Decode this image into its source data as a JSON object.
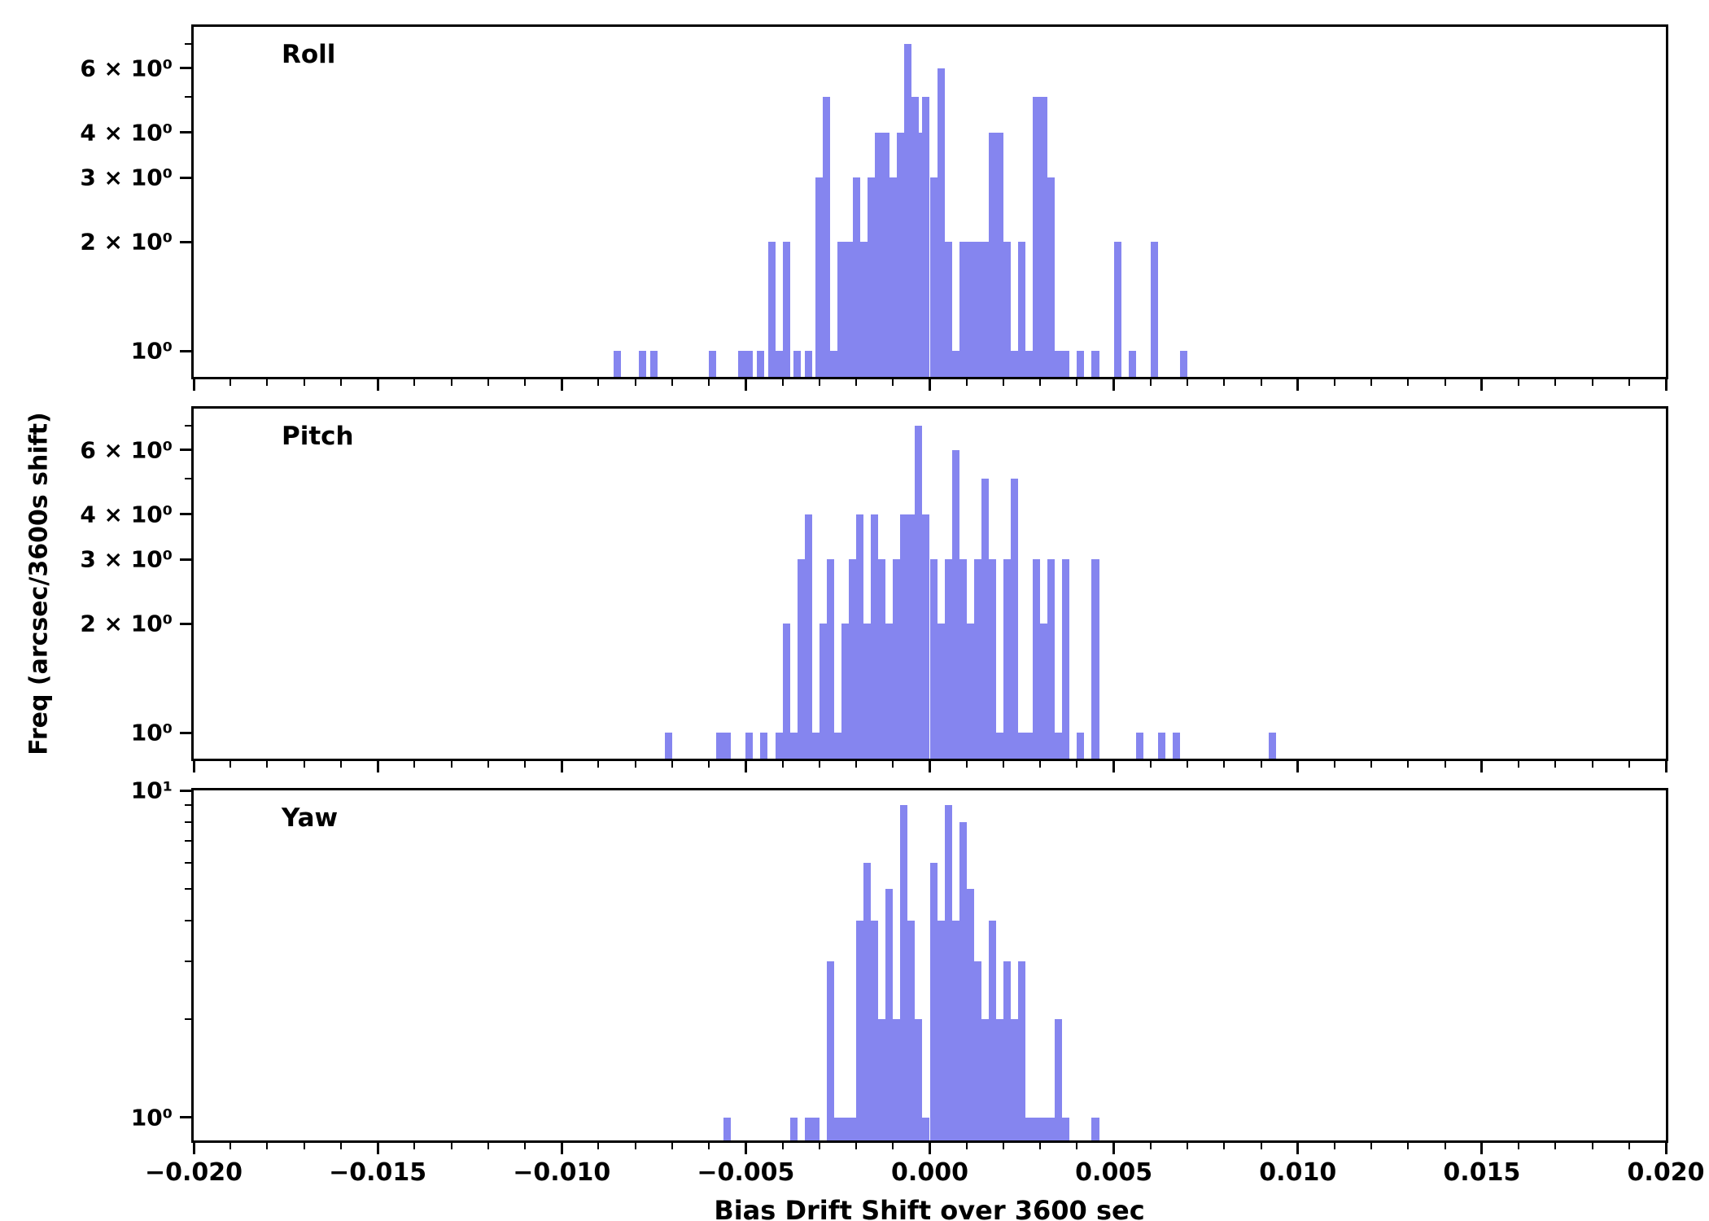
{
  "figure": {
    "bar_color": "#8585ef",
    "axis_color": "#000000",
    "background": "#ffffff"
  },
  "chart_data": {
    "type": "bar",
    "subtype": "histogram-log-y",
    "title": "",
    "xlabel": "Bias Drift Shift over 3600 sec",
    "ylabel": "Freq (arcsec/3600s shift)",
    "xlim": [
      -0.02,
      0.02
    ],
    "bin_width": 0.0002,
    "xticks": [
      -0.02,
      -0.015,
      -0.01,
      -0.005,
      0,
      0.005,
      0.01,
      0.015,
      0.02
    ],
    "xtick_labels": [
      "−0.020",
      "−0.015",
      "−0.010",
      "−0.005",
      "0.000",
      "0.005",
      "0.010",
      "0.015",
      "0.020"
    ],
    "legend": "none",
    "grid": false,
    "panels": [
      {
        "label": "Roll",
        "yscale": "log",
        "ylim": [
          0.85,
          7.8
        ],
        "yticks": [
          {
            "v": 1,
            "label": "10⁰"
          },
          {
            "v": 2,
            "label": "2 × 10⁰"
          },
          {
            "v": 3,
            "label": "3 × 10⁰"
          },
          {
            "v": 4,
            "label": "4 × 10⁰"
          },
          {
            "v": 6,
            "label": "6 × 10⁰"
          }
        ],
        "bars": [
          [
            -0.0086,
            1
          ],
          [
            -0.0079,
            1
          ],
          [
            -0.0076,
            1
          ],
          [
            -0.006,
            1
          ],
          [
            -0.0052,
            1
          ],
          [
            -0.005,
            1
          ],
          [
            -0.0047,
            1
          ],
          [
            -0.0044,
            2
          ],
          [
            -0.0042,
            1
          ],
          [
            -0.004,
            2
          ],
          [
            -0.0037,
            1
          ],
          [
            -0.0034,
            1
          ],
          [
            -0.0031,
            3
          ],
          [
            -0.0029,
            5
          ],
          [
            -0.0027,
            1
          ],
          [
            -0.0025,
            2
          ],
          [
            -0.0023,
            2
          ],
          [
            -0.0021,
            3
          ],
          [
            -0.0019,
            2
          ],
          [
            -0.0017,
            3
          ],
          [
            -0.0015,
            4
          ],
          [
            -0.0013,
            4
          ],
          [
            -0.0011,
            3
          ],
          [
            -0.0009,
            4
          ],
          [
            -0.0007,
            7
          ],
          [
            -0.0005,
            5
          ],
          [
            -0.0004,
            4
          ],
          [
            -0.0002,
            5
          ],
          [
            0,
            3
          ],
          [
            0.0002,
            6
          ],
          [
            0.0004,
            2
          ],
          [
            0.0006,
            1
          ],
          [
            0.0008,
            2
          ],
          [
            0.001,
            2
          ],
          [
            0.0012,
            2
          ],
          [
            0.0014,
            2
          ],
          [
            0.0016,
            4
          ],
          [
            0.0018,
            4
          ],
          [
            0.002,
            2
          ],
          [
            0.0022,
            1
          ],
          [
            0.0024,
            2
          ],
          [
            0.0026,
            1
          ],
          [
            0.0028,
            5
          ],
          [
            0.003,
            5
          ],
          [
            0.0032,
            3
          ],
          [
            0.0034,
            1
          ],
          [
            0.0036,
            1
          ],
          [
            0.004,
            1
          ],
          [
            0.0044,
            1
          ],
          [
            0.005,
            2
          ],
          [
            0.0054,
            1
          ],
          [
            0.006,
            2
          ],
          [
            0.0068,
            1
          ]
        ]
      },
      {
        "label": "Pitch",
        "yscale": "log",
        "ylim": [
          0.85,
          7.8
        ],
        "yticks": [
          {
            "v": 1,
            "label": "10⁰"
          },
          {
            "v": 2,
            "label": "2 × 10⁰"
          },
          {
            "v": 3,
            "label": "3 × 10⁰"
          },
          {
            "v": 4,
            "label": "4 × 10⁰"
          },
          {
            "v": 6,
            "label": "6 × 10⁰"
          }
        ],
        "bars": [
          [
            -0.0072,
            1
          ],
          [
            -0.0058,
            1
          ],
          [
            -0.0056,
            1
          ],
          [
            -0.005,
            1
          ],
          [
            -0.0046,
            1
          ],
          [
            -0.0042,
            1
          ],
          [
            -0.004,
            2
          ],
          [
            -0.0038,
            1
          ],
          [
            -0.0036,
            3
          ],
          [
            -0.0034,
            4
          ],
          [
            -0.0032,
            1
          ],
          [
            -0.003,
            2
          ],
          [
            -0.0028,
            3
          ],
          [
            -0.0026,
            1
          ],
          [
            -0.0024,
            2
          ],
          [
            -0.0022,
            3
          ],
          [
            -0.002,
            4
          ],
          [
            -0.0018,
            2
          ],
          [
            -0.0016,
            4
          ],
          [
            -0.0014,
            3
          ],
          [
            -0.0012,
            2
          ],
          [
            -0.001,
            3
          ],
          [
            -0.0008,
            4
          ],
          [
            -0.0006,
            4
          ],
          [
            -0.0004,
            7
          ],
          [
            -0.0002,
            4
          ],
          [
            0,
            3
          ],
          [
            0.0002,
            2
          ],
          [
            0.0004,
            3
          ],
          [
            0.0006,
            6
          ],
          [
            0.0008,
            3
          ],
          [
            0.001,
            2
          ],
          [
            0.0012,
            3
          ],
          [
            0.0014,
            5
          ],
          [
            0.0016,
            3
          ],
          [
            0.0018,
            1
          ],
          [
            0.002,
            3
          ],
          [
            0.0022,
            5
          ],
          [
            0.0024,
            1
          ],
          [
            0.0026,
            1
          ],
          [
            0.0028,
            3
          ],
          [
            0.003,
            2
          ],
          [
            0.0032,
            3
          ],
          [
            0.0034,
            1
          ],
          [
            0.0036,
            3
          ],
          [
            0.004,
            1
          ],
          [
            0.0044,
            3
          ],
          [
            0.0056,
            1
          ],
          [
            0.0062,
            1
          ],
          [
            0.0066,
            1
          ],
          [
            0.0092,
            1
          ]
        ]
      },
      {
        "label": "Yaw",
        "yscale": "log",
        "ylim": [
          0.85,
          10
        ],
        "yticks": [
          {
            "v": 1,
            "label": "10⁰"
          },
          {
            "v": 10,
            "label": "10¹"
          }
        ],
        "bars": [
          [
            -0.0056,
            1
          ],
          [
            -0.0038,
            1
          ],
          [
            -0.0034,
            1
          ],
          [
            -0.0032,
            1
          ],
          [
            -0.0028,
            3
          ],
          [
            -0.0026,
            1
          ],
          [
            -0.0024,
            1
          ],
          [
            -0.0022,
            1
          ],
          [
            -0.002,
            4
          ],
          [
            -0.0018,
            6
          ],
          [
            -0.0016,
            4
          ],
          [
            -0.0014,
            2
          ],
          [
            -0.0012,
            5
          ],
          [
            -0.001,
            2
          ],
          [
            -0.0008,
            9
          ],
          [
            -0.0006,
            4
          ],
          [
            -0.0004,
            2
          ],
          [
            -0.0002,
            1
          ],
          [
            0,
            6
          ],
          [
            0.0002,
            4
          ],
          [
            0.0004,
            9
          ],
          [
            0.0006,
            4
          ],
          [
            0.0008,
            8
          ],
          [
            0.001,
            5
          ],
          [
            0.0012,
            3
          ],
          [
            0.0014,
            2
          ],
          [
            0.0016,
            4
          ],
          [
            0.0018,
            2
          ],
          [
            0.002,
            3
          ],
          [
            0.0022,
            2
          ],
          [
            0.0024,
            3
          ],
          [
            0.0026,
            1
          ],
          [
            0.0028,
            1
          ],
          [
            0.003,
            1
          ],
          [
            0.0032,
            1
          ],
          [
            0.0034,
            2
          ],
          [
            0.0036,
            1
          ],
          [
            0.0044,
            1
          ]
        ]
      }
    ]
  }
}
